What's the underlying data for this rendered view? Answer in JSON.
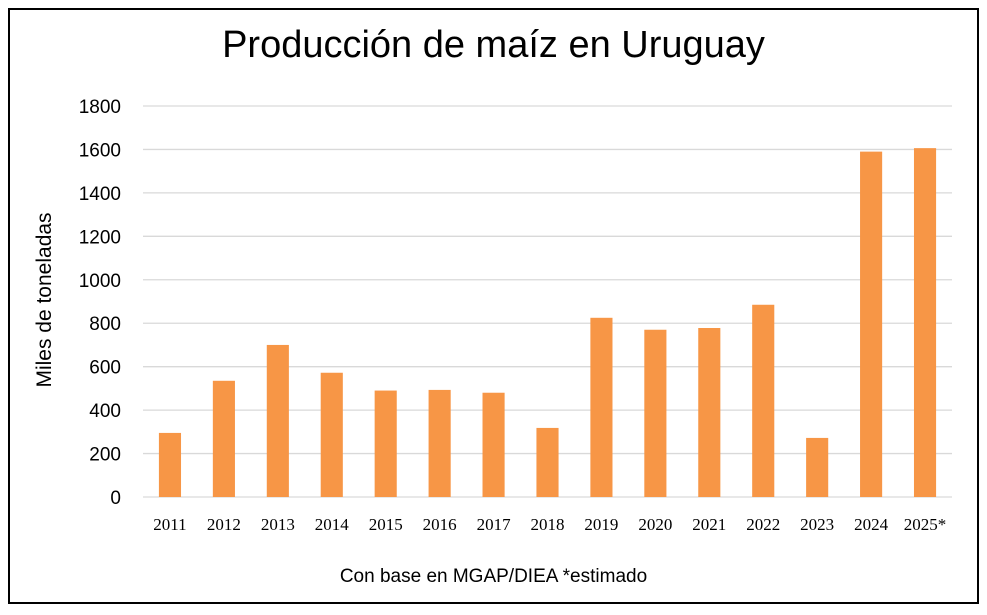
{
  "chart_data": {
    "type": "bar",
    "title": "Producción de maíz en Uruguay",
    "ylabel": "Miles de toneladas",
    "xlabel": "",
    "note": "Con base en MGAP/DIEA *estimado",
    "categories": [
      "2011",
      "2012",
      "2013",
      "2014",
      "2015",
      "2016",
      "2017",
      "2018",
      "2019",
      "2020",
      "2021",
      "2022",
      "2023",
      "2024",
      "2025*"
    ],
    "values": [
      295,
      535,
      700,
      572,
      490,
      493,
      480,
      318,
      825,
      770,
      778,
      885,
      272,
      1590,
      1606
    ],
    "yticks": [
      0,
      200,
      400,
      600,
      800,
      1000,
      1200,
      1400,
      1600,
      1800
    ],
    "ylim": [
      0,
      1800
    ],
    "grid": true,
    "legend": "none",
    "bar_color": "#F79646",
    "grid_color": "#D9D9D9"
  }
}
